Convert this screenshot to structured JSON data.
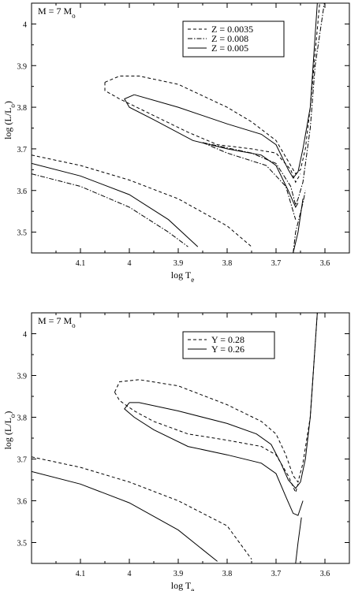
{
  "chart_data": [
    {
      "type": "line",
      "title": "",
      "xlabel": "log T_e",
      "ylabel": "log (L/L_o)",
      "annotation": "M = 7 M_o",
      "xlim": [
        4.2,
        3.55
      ],
      "ylim": [
        3.45,
        4.05
      ],
      "x_inverted": true,
      "x_ticks": [
        4.1,
        4.0,
        3.9,
        3.8,
        3.7,
        3.6
      ],
      "x_tick_labels": [
        "4.1",
        "4",
        "3.9",
        "3.8",
        "3.7",
        "3.6"
      ],
      "y_ticks": [
        3.5,
        3.6,
        3.7,
        3.8,
        3.9,
        4.0
      ],
      "y_tick_labels": [
        "3.5",
        "3.6",
        "3.7",
        "3.8",
        "3.9",
        "4"
      ],
      "legend_position": "top-right",
      "series": [
        {
          "name": "Z = 0.0035",
          "style": "dashed",
          "segments": [
            [
              [
                4.2,
                3.685
              ],
              [
                4.1,
                3.66
              ],
              [
                4.0,
                3.625
              ],
              [
                3.9,
                3.58
              ],
              [
                3.8,
                3.515
              ],
              [
                3.75,
                3.465
              ]
            ],
            [
              [
                4.05,
                3.86
              ],
              [
                4.02,
                3.875
              ],
              [
                3.98,
                3.875
              ],
              [
                3.9,
                3.855
              ],
              [
                3.8,
                3.8
              ],
              [
                3.75,
                3.765
              ],
              [
                3.7,
                3.72
              ],
              [
                3.67,
                3.66
              ],
              [
                3.66,
                3.64
              ],
              [
                3.65,
                3.65
              ],
              [
                3.64,
                3.7
              ],
              [
                3.63,
                3.8
              ],
              [
                3.61,
                4.06
              ]
            ],
            [
              [
                4.05,
                3.86
              ],
              [
                4.05,
                3.84
              ],
              [
                4.02,
                3.82
              ],
              [
                3.95,
                3.78
              ],
              [
                3.88,
                3.74
              ],
              [
                3.82,
                3.71
              ],
              [
                3.75,
                3.7
              ],
              [
                3.7,
                3.69
              ],
              [
                3.67,
                3.65
              ],
              [
                3.66,
                3.62
              ],
              [
                3.65,
                3.64
              ]
            ]
          ]
        },
        {
          "name": "Z = 0.008",
          "style": "dashdot",
          "segments": [
            [
              [
                4.2,
                3.64
              ],
              [
                4.1,
                3.61
              ],
              [
                4.0,
                3.56
              ],
              [
                3.92,
                3.5
              ],
              [
                3.88,
                3.465
              ]
            ],
            [
              [
                3.85,
                3.715
              ],
              [
                3.75,
                3.69
              ],
              [
                3.7,
                3.665
              ],
              [
                3.67,
                3.61
              ],
              [
                3.66,
                3.565
              ],
              [
                3.655,
                3.58
              ],
              [
                3.645,
                3.62
              ],
              [
                3.63,
                3.75
              ],
              [
                3.62,
                3.9
              ],
              [
                3.6,
                4.06
              ]
            ],
            [
              [
                3.85,
                3.715
              ],
              [
                3.8,
                3.69
              ],
              [
                3.72,
                3.66
              ],
              [
                3.68,
                3.61
              ],
              [
                3.665,
                3.55
              ],
              [
                3.66,
                3.53
              ]
            ],
            [
              [
                3.665,
                3.45
              ],
              [
                3.66,
                3.5
              ],
              [
                3.645,
                3.57
              ],
              [
                3.64,
                3.6
              ]
            ]
          ]
        },
        {
          "name": "Z = 0.005",
          "style": "solid",
          "segments": [
            [
              [
                4.2,
                3.665
              ],
              [
                4.1,
                3.635
              ],
              [
                4.0,
                3.59
              ],
              [
                3.92,
                3.53
              ],
              [
                3.86,
                3.465
              ]
            ],
            [
              [
                3.99,
                3.83
              ],
              [
                3.9,
                3.8
              ],
              [
                3.8,
                3.76
              ],
              [
                3.73,
                3.735
              ],
              [
                3.7,
                3.71
              ],
              [
                3.675,
                3.65
              ],
              [
                3.665,
                3.63
              ],
              [
                3.655,
                3.645
              ],
              [
                3.645,
                3.7
              ],
              [
                3.63,
                3.8
              ],
              [
                3.615,
                4.06
              ]
            ],
            [
              [
                3.99,
                3.83
              ],
              [
                4.01,
                3.82
              ],
              [
                4.0,
                3.8
              ],
              [
                3.95,
                3.77
              ],
              [
                3.87,
                3.72
              ],
              [
                3.8,
                3.7
              ],
              [
                3.73,
                3.685
              ],
              [
                3.7,
                3.66
              ],
              [
                3.675,
                3.6
              ],
              [
                3.66,
                3.56
              ],
              [
                3.655,
                3.57
              ]
            ],
            [
              [
                3.665,
                3.45
              ],
              [
                3.655,
                3.5
              ],
              [
                3.645,
                3.58
              ]
            ]
          ]
        }
      ]
    },
    {
      "type": "line",
      "title": "",
      "xlabel": "log T_e",
      "ylabel": "log (L/L_o)",
      "annotation": "M = 7 M_o",
      "xlim": [
        4.2,
        3.55
      ],
      "ylim": [
        3.45,
        4.05
      ],
      "x_inverted": true,
      "x_ticks": [
        4.1,
        4.0,
        3.9,
        3.8,
        3.7,
        3.6
      ],
      "x_tick_labels": [
        "4.1",
        "4",
        "3.9",
        "3.8",
        "3.7",
        "3.6"
      ],
      "y_ticks": [
        3.5,
        3.6,
        3.7,
        3.8,
        3.9,
        4.0
      ],
      "y_tick_labels": [
        "3.5",
        "3.6",
        "3.7",
        "3.8",
        "3.9",
        "4"
      ],
      "legend_position": "top-right",
      "series": [
        {
          "name": "Y = 0.28",
          "style": "dashed",
          "segments": [
            [
              [
                4.2,
                3.705
              ],
              [
                4.1,
                3.68
              ],
              [
                4.0,
                3.645
              ],
              [
                3.9,
                3.6
              ],
              [
                3.8,
                3.54
              ],
              [
                3.75,
                3.46
              ]
            ],
            [
              [
                4.03,
                3.86
              ],
              [
                4.02,
                3.885
              ],
              [
                3.98,
                3.89
              ],
              [
                3.9,
                3.875
              ],
              [
                3.8,
                3.83
              ],
              [
                3.73,
                3.79
              ],
              [
                3.7,
                3.76
              ],
              [
                3.68,
                3.71
              ],
              [
                3.665,
                3.66
              ],
              [
                3.655,
                3.645
              ],
              [
                3.645,
                3.69
              ],
              [
                3.63,
                3.8
              ],
              [
                3.615,
                4.06
              ]
            ],
            [
              [
                4.03,
                3.86
              ],
              [
                4.02,
                3.84
              ],
              [
                3.99,
                3.815
              ],
              [
                3.95,
                3.79
              ],
              [
                3.88,
                3.76
              ],
              [
                3.8,
                3.745
              ],
              [
                3.73,
                3.73
              ],
              [
                3.7,
                3.71
              ],
              [
                3.675,
                3.66
              ],
              [
                3.66,
                3.62
              ],
              [
                3.655,
                3.64
              ]
            ]
          ]
        },
        {
          "name": "Y = 0.26",
          "style": "solid",
          "segments": [
            [
              [
                4.2,
                3.67
              ],
              [
                4.1,
                3.64
              ],
              [
                4.0,
                3.595
              ],
              [
                3.9,
                3.53
              ],
              [
                3.82,
                3.455
              ]
            ],
            [
              [
                4.0,
                3.835
              ],
              [
                3.98,
                3.835
              ],
              [
                3.9,
                3.815
              ],
              [
                3.8,
                3.785
              ],
              [
                3.74,
                3.76
              ],
              [
                3.71,
                3.735
              ],
              [
                3.69,
                3.69
              ],
              [
                3.675,
                3.65
              ],
              [
                3.66,
                3.63
              ],
              [
                3.65,
                3.645
              ],
              [
                3.64,
                3.7
              ],
              [
                3.63,
                3.8
              ],
              [
                3.615,
                4.06
              ]
            ],
            [
              [
                4.0,
                3.835
              ],
              [
                4.01,
                3.82
              ],
              [
                3.99,
                3.8
              ],
              [
                3.95,
                3.77
              ],
              [
                3.88,
                3.73
              ],
              [
                3.8,
                3.71
              ],
              [
                3.73,
                3.69
              ],
              [
                3.7,
                3.665
              ],
              [
                3.68,
                3.61
              ],
              [
                3.665,
                3.57
              ],
              [
                3.655,
                3.565
              ],
              [
                3.645,
                3.6
              ]
            ],
            [
              [
                3.66,
                3.45
              ],
              [
                3.655,
                3.5
              ],
              [
                3.648,
                3.56
              ]
            ]
          ]
        }
      ]
    }
  ]
}
